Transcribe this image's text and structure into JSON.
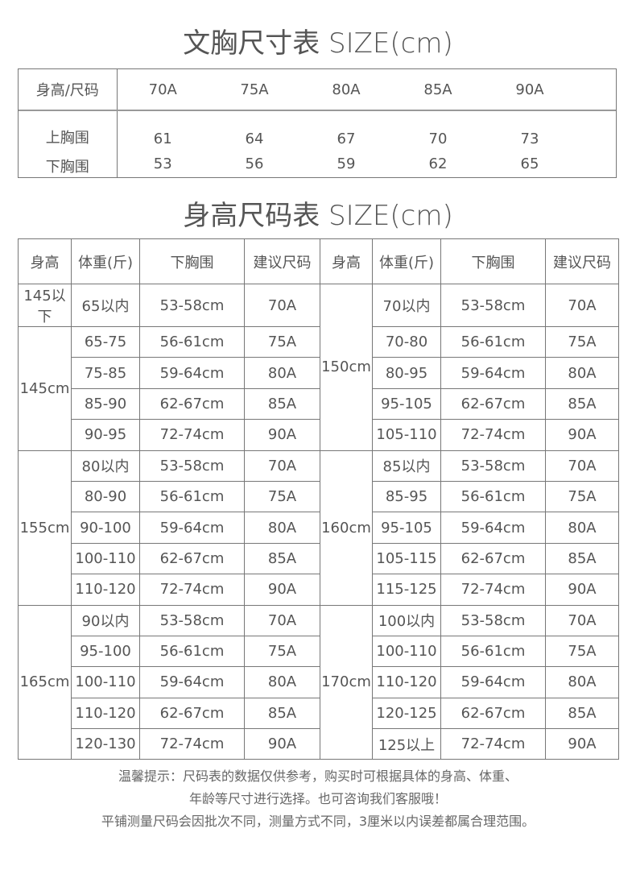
{
  "bra_chart": {
    "title": "文胸尺寸表 SIZE(cm)",
    "header_label": "身高/尺码",
    "sizes": [
      "70A",
      "75A",
      "80A",
      "85A",
      "90A"
    ],
    "rows": [
      {
        "label": "上胸围",
        "values": [
          "61",
          "64",
          "67",
          "70",
          "73"
        ]
      },
      {
        "label": "下胸围",
        "values": [
          "53",
          "56",
          "59",
          "62",
          "65"
        ]
      }
    ]
  },
  "height_chart": {
    "title": "身高尺码表 SIZE(cm)",
    "headers": [
      "身高",
      "体重(斤)",
      "下胸围",
      "建议尺码",
      "身高",
      "体重(斤)",
      "下胸围",
      "建议尺码"
    ],
    "left_groups": [
      {
        "height": "145以下",
        "rows": [
          [
            "65以内",
            "53-58cm",
            "70A"
          ]
        ]
      },
      {
        "height": "145cm",
        "rows": [
          [
            "65-75",
            "56-61cm",
            "75A"
          ],
          [
            "75-85",
            "59-64cm",
            "80A"
          ],
          [
            "85-90",
            "62-67cm",
            "85A"
          ],
          [
            "90-95",
            "72-74cm",
            "90A"
          ]
        ]
      },
      {
        "height": "155cm",
        "rows": [
          [
            "80以内",
            "53-58cm",
            "70A"
          ],
          [
            "80-90",
            "56-61cm",
            "75A"
          ],
          [
            "90-100",
            "59-64cm",
            "80A"
          ],
          [
            "100-110",
            "62-67cm",
            "85A"
          ],
          [
            "110-120",
            "72-74cm",
            "90A"
          ]
        ]
      },
      {
        "height": "165cm",
        "rows": [
          [
            "90以内",
            "53-58cm",
            "70A"
          ],
          [
            "95-100",
            "56-61cm",
            "75A"
          ],
          [
            "100-110",
            "59-64cm",
            "80A"
          ],
          [
            "110-120",
            "62-67cm",
            "85A"
          ],
          [
            "120-130",
            "72-74cm",
            "90A"
          ]
        ]
      }
    ],
    "right_groups": [
      {
        "height": "150cm",
        "rows": [
          [
            "70以内",
            "53-58cm",
            "70A"
          ],
          [
            "70-80",
            "56-61cm",
            "75A"
          ],
          [
            "80-95",
            "59-64cm",
            "80A"
          ],
          [
            "95-105",
            "62-67cm",
            "85A"
          ],
          [
            "105-110",
            "72-74cm",
            "90A"
          ]
        ]
      },
      {
        "height": "160cm",
        "rows": [
          [
            "85以内",
            "53-58cm",
            "70A"
          ],
          [
            "85-95",
            "56-61cm",
            "75A"
          ],
          [
            "95-105",
            "59-64cm",
            "80A"
          ],
          [
            "105-115",
            "62-67cm",
            "85A"
          ],
          [
            "115-125",
            "72-74cm",
            "90A"
          ]
        ]
      },
      {
        "height": "170cm",
        "rows": [
          [
            "100以内",
            "53-58cm",
            "70A"
          ],
          [
            "100-110",
            "56-61cm",
            "75A"
          ],
          [
            "110-120",
            "59-64cm",
            "80A"
          ],
          [
            "120-125",
            "62-67cm",
            "85A"
          ],
          [
            "125以上",
            "72-74cm",
            "90A"
          ]
        ]
      }
    ]
  },
  "notes": [
    "温馨提示：尺码表的数据仅供参考，购买时可根据具体的身高、体重、",
    "年龄等尺寸进行选择。也可咨询我们客服哦！",
    "平铺测量尺码会因批次不同，测量方式不同，3厘米以内误差都属合理范围。"
  ]
}
